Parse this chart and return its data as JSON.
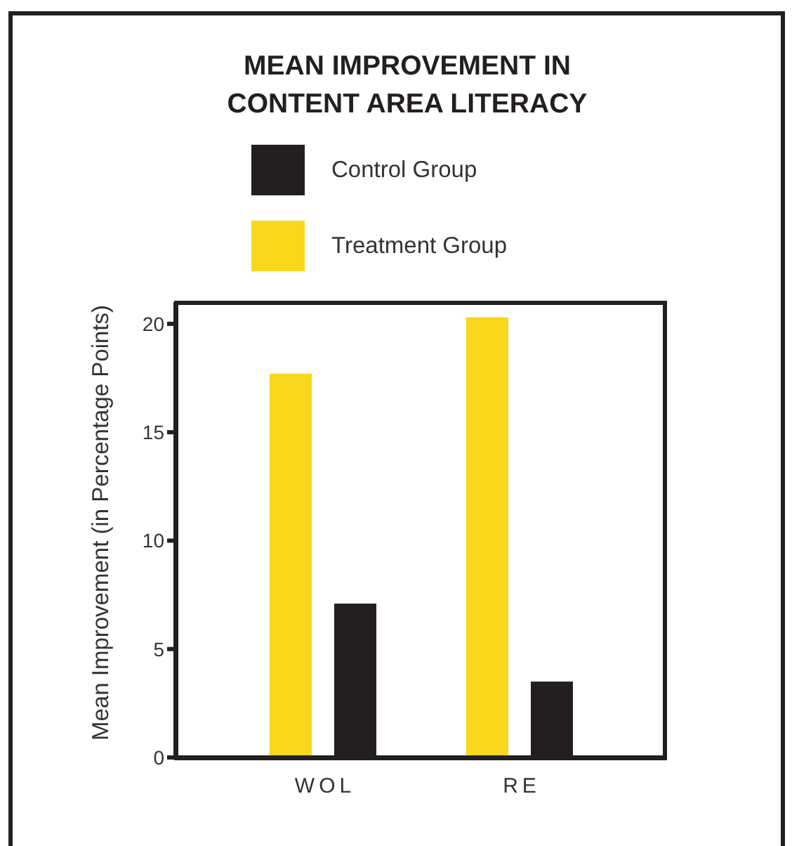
{
  "chart_data": {
    "type": "bar",
    "title": "MEAN IMPROVEMENT IN CONTENT AREA LITERACY",
    "ylabel": "Mean Improvement (in Percentage Points)",
    "categories": [
      "WOL",
      "RE"
    ],
    "series": [
      {
        "name": "Treatment Group",
        "color": "#f9d71c",
        "values": [
          17.7,
          20.3
        ]
      },
      {
        "name": "Control Group",
        "color": "#231f20",
        "values": [
          7.1,
          3.5
        ]
      }
    ],
    "ylim": [
      0,
      21
    ],
    "yticks": [
      0,
      5,
      10,
      15,
      20
    ],
    "legend": "top"
  }
}
